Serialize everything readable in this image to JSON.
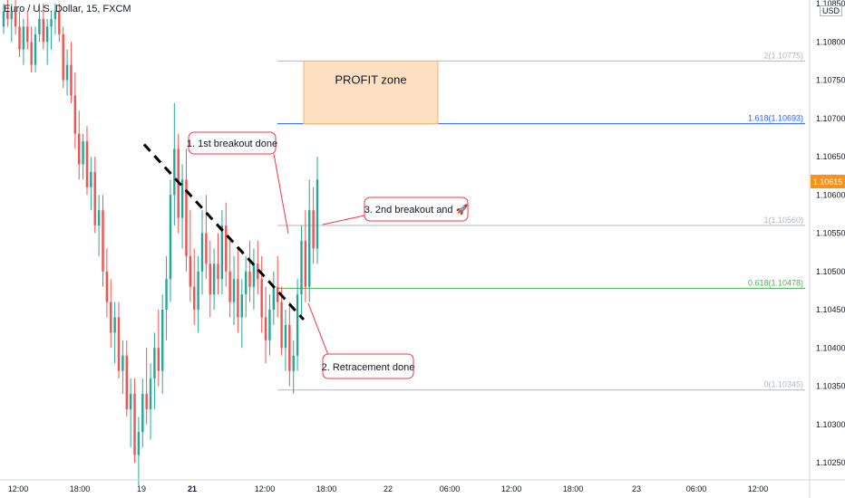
{
  "header": {
    "symbol": "Euro / U.S. Dollar, 15, FXCM",
    "currency": "USD"
  },
  "chart_data": {
    "type": "candlestick",
    "title": "Euro / U.S. Dollar, 15, FXCM",
    "ylim": [
      1.1022,
      1.1085
    ],
    "y_ticks": [
      "1.10850",
      "1.10800",
      "1.10750",
      "1.10700",
      "1.10650",
      "1.10600",
      "1.10550",
      "1.10500",
      "1.10450",
      "1.10400",
      "1.10350",
      "1.10300",
      "1.10250"
    ],
    "x_ticks": [
      "12:00",
      "18:00",
      "19",
      "21",
      "12:00",
      "18:00",
      "22",
      "06:00",
      "12:00",
      "18:00",
      "23",
      "06:00",
      "12:00"
    ],
    "last_price": "1.10615",
    "fib_levels": [
      {
        "label": "2(1.10775)",
        "value": 1.10775,
        "color": "#b2b5be"
      },
      {
        "label": "1.618(1.10693)",
        "value": 1.10693,
        "color": "#2962ff"
      },
      {
        "label": "1(1.10560)",
        "value": 1.1056,
        "color": "#b2b5be"
      },
      {
        "label": "0.618(1.10478)",
        "value": 1.10478,
        "color": "#4caf50"
      },
      {
        "label": "0(1.10345)",
        "value": 1.10345,
        "color": "#b2b5be"
      }
    ],
    "profit_zone": {
      "label": "PROFIT zone",
      "from": 1.10693,
      "to": 1.10775
    },
    "trendline": {
      "from": {
        "t": 0.178,
        "price": 1.10666
      },
      "to": {
        "t": 0.375,
        "price": 1.10437
      }
    },
    "annotations": [
      {
        "text": "1. 1st breakout done"
      },
      {
        "text": "2. Retracement done"
      },
      {
        "text": "3. 2nd breakout and 🚀"
      }
    ],
    "candles": [
      [
        1.1082,
        1.1085,
        1.1081,
        1.1084
      ],
      [
        1.1084,
        1.1086,
        1.1082,
        1.1083
      ],
      [
        1.1083,
        1.1085,
        1.108,
        1.1084
      ],
      [
        1.1084,
        1.1086,
        1.1081,
        1.1082
      ],
      [
        1.1082,
        1.1084,
        1.1078,
        1.1079
      ],
      [
        1.1079,
        1.1083,
        1.1077,
        1.1082
      ],
      [
        1.1082,
        1.1084,
        1.1079,
        1.108
      ],
      [
        1.108,
        1.1082,
        1.1076,
        1.1077
      ],
      [
        1.1077,
        1.1082,
        1.1076,
        1.1081
      ],
      [
        1.1081,
        1.1085,
        1.108,
        1.1083
      ],
      [
        1.1083,
        1.1085,
        1.1079,
        1.108
      ],
      [
        1.108,
        1.1083,
        1.1077,
        1.1082
      ],
      [
        1.1082,
        1.1084,
        1.1079,
        1.1083
      ],
      [
        1.1083,
        1.1085,
        1.1081,
        1.1084
      ],
      [
        1.1084,
        1.1085,
        1.108,
        1.1081
      ],
      [
        1.1081,
        1.1082,
        1.1074,
        1.1075
      ],
      [
        1.1075,
        1.1079,
        1.1073,
        1.1077
      ],
      [
        1.1077,
        1.108,
        1.1072,
        1.1073
      ],
      [
        1.1073,
        1.1076,
        1.1066,
        1.1068
      ],
      [
        1.1068,
        1.1071,
        1.1062,
        1.1064
      ],
      [
        1.1064,
        1.1068,
        1.1062,
        1.1067
      ],
      [
        1.1067,
        1.1069,
        1.106,
        1.1061
      ],
      [
        1.1061,
        1.1065,
        1.1058,
        1.1063
      ],
      [
        1.1063,
        1.1065,
        1.1055,
        1.1056
      ],
      [
        1.1056,
        1.106,
        1.1052,
        1.1058
      ],
      [
        1.1058,
        1.106,
        1.1048,
        1.105
      ],
      [
        1.105,
        1.1053,
        1.1044,
        1.1046
      ],
      [
        1.1046,
        1.1049,
        1.104,
        1.1042
      ],
      [
        1.1042,
        1.1046,
        1.1038,
        1.1044
      ],
      [
        1.1044,
        1.1046,
        1.1036,
        1.1037
      ],
      [
        1.1037,
        1.1041,
        1.1034,
        1.1039
      ],
      [
        1.1039,
        1.1041,
        1.1031,
        1.1032
      ],
      [
        1.1032,
        1.1036,
        1.1027,
        1.1034
      ],
      [
        1.1034,
        1.1036,
        1.1025,
        1.1026
      ],
      [
        1.1026,
        1.1031,
        1.1022,
        1.1029
      ],
      [
        1.1029,
        1.1036,
        1.1027,
        1.1034
      ],
      [
        1.1034,
        1.104,
        1.103,
        1.1032
      ],
      [
        1.1032,
        1.1038,
        1.1028,
        1.1036
      ],
      [
        1.1036,
        1.1042,
        1.1032,
        1.104
      ],
      [
        1.104,
        1.1045,
        1.1035,
        1.1037
      ],
      [
        1.1037,
        1.1047,
        1.1034,
        1.1045
      ],
      [
        1.1045,
        1.1052,
        1.1041,
        1.1049
      ],
      [
        1.1049,
        1.1062,
        1.1046,
        1.106
      ],
      [
        1.106,
        1.1072,
        1.1056,
        1.1066
      ],
      [
        1.1066,
        1.1068,
        1.1055,
        1.1057
      ],
      [
        1.1057,
        1.1064,
        1.1053,
        1.1062
      ],
      [
        1.1062,
        1.1066,
        1.105,
        1.1052
      ],
      [
        1.1052,
        1.1058,
        1.1046,
        1.1048
      ],
      [
        1.1048,
        1.1053,
        1.1043,
        1.1045
      ],
      [
        1.1045,
        1.1052,
        1.1042,
        1.105
      ],
      [
        1.105,
        1.1058,
        1.1047,
        1.1055
      ],
      [
        1.1055,
        1.106,
        1.1049,
        1.1051
      ],
      [
        1.1051,
        1.1054,
        1.1044,
        1.1047
      ],
      [
        1.1047,
        1.1053,
        1.1045,
        1.1051
      ],
      [
        1.1051,
        1.1055,
        1.1047,
        1.1049
      ],
      [
        1.1049,
        1.1058,
        1.1047,
        1.1056
      ],
      [
        1.1056,
        1.1059,
        1.1048,
        1.105
      ],
      [
        1.105,
        1.1054,
        1.1044,
        1.1046
      ],
      [
        1.1046,
        1.1052,
        1.1043,
        1.1049
      ],
      [
        1.1049,
        1.1053,
        1.1042,
        1.1044
      ],
      [
        1.1044,
        1.1049,
        1.104,
        1.1047
      ],
      [
        1.1047,
        1.1052,
        1.1044,
        1.105
      ],
      [
        1.105,
        1.1054,
        1.1046,
        1.1048
      ],
      [
        1.1048,
        1.1053,
        1.1045,
        1.1051
      ],
      [
        1.1051,
        1.1054,
        1.1047,
        1.1049
      ],
      [
        1.1049,
        1.1052,
        1.1042,
        1.1044
      ],
      [
        1.1044,
        1.1048,
        1.1038,
        1.1041
      ],
      [
        1.1041,
        1.1047,
        1.1039,
        1.1045
      ],
      [
        1.1045,
        1.105,
        1.1043,
        1.1048
      ],
      [
        1.1048,
        1.1052,
        1.1044,
        1.1046
      ],
      [
        1.1046,
        1.1048,
        1.1039,
        1.104
      ],
      [
        1.104,
        1.1045,
        1.1037,
        1.1043
      ],
      [
        1.1043,
        1.1046,
        1.1035,
        1.1037
      ],
      [
        1.1037,
        1.1041,
        1.1034,
        1.1039
      ],
      [
        1.1039,
        1.1049,
        1.1037,
        1.1047
      ],
      [
        1.1047,
        1.1056,
        1.1044,
        1.1054
      ],
      [
        1.1054,
        1.1058,
        1.1046,
        1.1048
      ],
      [
        1.1048,
        1.1062,
        1.1046,
        1.1058
      ],
      [
        1.1058,
        1.1061,
        1.1051,
        1.1053
      ],
      [
        1.1053,
        1.1065,
        1.1051,
        1.1062
      ]
    ]
  }
}
